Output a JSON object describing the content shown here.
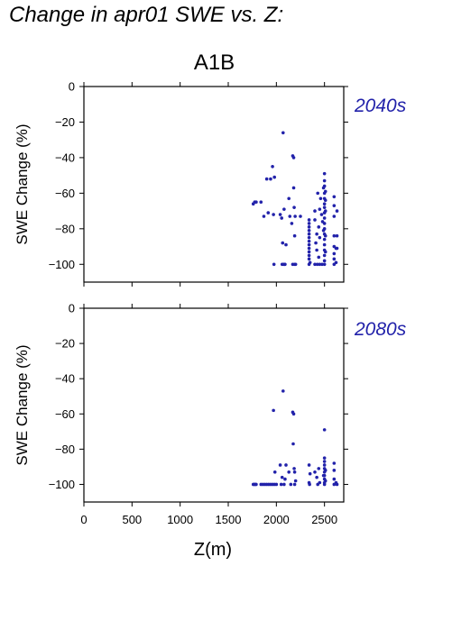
{
  "title": "Change in apr01 SWE vs. Z:",
  "scenario": "A1B",
  "colors": {
    "points": "#2222aa",
    "period_label": "#2222aa",
    "axes": "#000000"
  },
  "chart_data": [
    {
      "type": "scatter",
      "period_label": "2040s",
      "ylabel": "SWE Change (%)",
      "xlabel": "",
      "xlim": [
        0,
        2700
      ],
      "ylim": [
        -110,
        0
      ],
      "xticks": [
        0,
        500,
        1000,
        1500,
        2000,
        2500
      ],
      "yticks": [
        0,
        -20,
        -40,
        -60,
        -80,
        -100
      ],
      "show_xtick_labels": false,
      "grid": false,
      "points": [
        [
          1760,
          -66
        ],
        [
          1775,
          -65
        ],
        [
          1790,
          -65
        ],
        [
          1840,
          -65
        ],
        [
          1870,
          -73
        ],
        [
          1900,
          -52
        ],
        [
          1915,
          -71
        ],
        [
          1940,
          -52
        ],
        [
          1960,
          -45
        ],
        [
          1970,
          -72
        ],
        [
          1975,
          -100
        ],
        [
          1980,
          -51
        ],
        [
          2040,
          -72
        ],
        [
          2055,
          -74
        ],
        [
          2060,
          -100
        ],
        [
          2065,
          -88
        ],
        [
          2070,
          -26
        ],
        [
          2075,
          -100
        ],
        [
          2080,
          -69
        ],
        [
          2085,
          -100
        ],
        [
          2090,
          -100
        ],
        [
          2100,
          -89
        ],
        [
          2130,
          -63
        ],
        [
          2140,
          -73
        ],
        [
          2160,
          -77
        ],
        [
          2170,
          -100
        ],
        [
          2170,
          -39
        ],
        [
          2180,
          -40
        ],
        [
          2180,
          -57
        ],
        [
          2185,
          -68
        ],
        [
          2190,
          -100
        ],
        [
          2190,
          -84
        ],
        [
          2195,
          -73
        ],
        [
          2200,
          -100
        ],
        [
          2250,
          -73
        ],
        [
          2340,
          -75
        ],
        [
          2340,
          -77
        ],
        [
          2340,
          -79
        ],
        [
          2340,
          -81
        ],
        [
          2340,
          -83
        ],
        [
          2340,
          -85
        ],
        [
          2340,
          -87
        ],
        [
          2340,
          -89
        ],
        [
          2340,
          -91
        ],
        [
          2340,
          -93
        ],
        [
          2340,
          -95
        ],
        [
          2340,
          -97
        ],
        [
          2340,
          -100
        ],
        [
          2350,
          -99
        ],
        [
          2400,
          -75
        ],
        [
          2400,
          -70
        ],
        [
          2400,
          -100
        ],
        [
          2410,
          -88
        ],
        [
          2420,
          -83
        ],
        [
          2420,
          -92
        ],
        [
          2425,
          -100
        ],
        [
          2430,
          -60
        ],
        [
          2440,
          -96
        ],
        [
          2440,
          -79
        ],
        [
          2450,
          -69
        ],
        [
          2450,
          -85
        ],
        [
          2450,
          -100
        ],
        [
          2460,
          -63
        ],
        [
          2470,
          -72
        ],
        [
          2475,
          -100
        ],
        [
          2480,
          -76
        ],
        [
          2490,
          -57
        ],
        [
          2490,
          -81
        ],
        [
          2500,
          -49
        ],
        [
          2500,
          -53
        ],
        [
          2500,
          -56
        ],
        [
          2500,
          -60
        ],
        [
          2500,
          -63
        ],
        [
          2500,
          -66
        ],
        [
          2500,
          -68
        ],
        [
          2500,
          -71
        ],
        [
          2500,
          -74
        ],
        [
          2500,
          -77
        ],
        [
          2500,
          -80
        ],
        [
          2500,
          -83
        ],
        [
          2500,
          -86
        ],
        [
          2500,
          -89
        ],
        [
          2500,
          -92
        ],
        [
          2500,
          -95
        ],
        [
          2500,
          -98
        ],
        [
          2500,
          -100
        ],
        [
          2510,
          -59
        ],
        [
          2510,
          -64
        ],
        [
          2510,
          -70
        ],
        [
          2510,
          -84
        ],
        [
          2510,
          -93
        ],
        [
          2600,
          -62
        ],
        [
          2600,
          -67
        ],
        [
          2600,
          -73
        ],
        [
          2600,
          -84
        ],
        [
          2600,
          -90
        ],
        [
          2600,
          -94
        ],
        [
          2600,
          -97
        ],
        [
          2600,
          -100
        ],
        [
          2620,
          -91
        ],
        [
          2620,
          -99
        ],
        [
          2630,
          -70
        ],
        [
          2630,
          -84
        ],
        [
          2630,
          -91
        ]
      ]
    },
    {
      "type": "scatter",
      "period_label": "2080s",
      "ylabel": "SWE Change (%)",
      "xlabel": "Z(m)",
      "xlim": [
        0,
        2700
      ],
      "ylim": [
        -110,
        0
      ],
      "xticks": [
        0,
        500,
        1000,
        1500,
        2000,
        2500
      ],
      "xtick_labels": [
        "0",
        "500",
        "1000",
        "1500",
        "2000",
        "2500"
      ],
      "yticks": [
        0,
        -20,
        -40,
        -60,
        -80,
        -100
      ],
      "show_xtick_labels": true,
      "grid": false,
      "points": [
        [
          1760,
          -100
        ],
        [
          1770,
          -100
        ],
        [
          1780,
          -100
        ],
        [
          1790,
          -100
        ],
        [
          1840,
          -100
        ],
        [
          1860,
          -100
        ],
        [
          1880,
          -100
        ],
        [
          1900,
          -100
        ],
        [
          1920,
          -100
        ],
        [
          1940,
          -100
        ],
        [
          1960,
          -100
        ],
        [
          1970,
          -58
        ],
        [
          1980,
          -100
        ],
        [
          1985,
          -93
        ],
        [
          2000,
          -100
        ],
        [
          2040,
          -89
        ],
        [
          2050,
          -100
        ],
        [
          2060,
          -96
        ],
        [
          2070,
          -47
        ],
        [
          2080,
          -100
        ],
        [
          2090,
          -97
        ],
        [
          2100,
          -89
        ],
        [
          2130,
          -93
        ],
        [
          2150,
          -100
        ],
        [
          2170,
          -59
        ],
        [
          2175,
          -77
        ],
        [
          2180,
          -60
        ],
        [
          2185,
          -91
        ],
        [
          2190,
          -93
        ],
        [
          2190,
          -100
        ],
        [
          2200,
          -98
        ],
        [
          2340,
          -89
        ],
        [
          2340,
          -99
        ],
        [
          2345,
          -100
        ],
        [
          2350,
          -94
        ],
        [
          2400,
          -93
        ],
        [
          2420,
          -96
        ],
        [
          2430,
          -100
        ],
        [
          2440,
          -91
        ],
        [
          2450,
          -99
        ],
        [
          2490,
          -95
        ],
        [
          2500,
          -69
        ],
        [
          2500,
          -85
        ],
        [
          2500,
          -87
        ],
        [
          2500,
          -89
        ],
        [
          2500,
          -91
        ],
        [
          2500,
          -93
        ],
        [
          2500,
          -95
        ],
        [
          2500,
          -97
        ],
        [
          2500,
          -99
        ],
        [
          2500,
          -100
        ],
        [
          2510,
          -92
        ],
        [
          2510,
          -98
        ],
        [
          2600,
          -88
        ],
        [
          2600,
          -92
        ],
        [
          2600,
          -97
        ],
        [
          2600,
          -100
        ],
        [
          2620,
          -99
        ],
        [
          2630,
          -100
        ]
      ]
    }
  ]
}
